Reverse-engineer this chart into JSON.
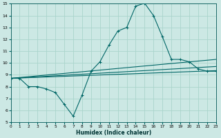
{
  "xlabel": "Humidex (Indice chaleur)",
  "bg_color": "#cce8e4",
  "grid_color": "#aad4cc",
  "line_color": "#006666",
  "xlim": [
    0,
    23
  ],
  "ylim": [
    5,
    15
  ],
  "yticks": [
    5,
    6,
    7,
    8,
    9,
    10,
    11,
    12,
    13,
    14,
    15
  ],
  "xticks": [
    0,
    1,
    2,
    3,
    4,
    5,
    6,
    7,
    8,
    9,
    10,
    11,
    12,
    13,
    14,
    15,
    16,
    17,
    18,
    19,
    20,
    21,
    22,
    23
  ],
  "main_x": [
    0,
    1,
    2,
    3,
    4,
    5,
    6,
    7,
    8,
    9,
    10,
    11,
    12,
    13,
    14,
    15,
    16,
    17,
    18,
    19,
    20,
    21,
    22,
    23
  ],
  "main_y": [
    8.7,
    8.7,
    8.0,
    8.0,
    7.8,
    7.5,
    6.5,
    5.5,
    7.3,
    9.3,
    10.1,
    11.5,
    12.7,
    13.0,
    14.8,
    15.05,
    14.0,
    12.2,
    10.3,
    10.3,
    10.1,
    9.5,
    9.3,
    9.3
  ],
  "line2_x": [
    0,
    23
  ],
  "line2_y": [
    8.7,
    9.35
  ],
  "line3_x": [
    0,
    23
  ],
  "line3_y": [
    8.7,
    10.3
  ],
  "line4_x": [
    0,
    23
  ],
  "line4_y": [
    8.7,
    9.7
  ]
}
